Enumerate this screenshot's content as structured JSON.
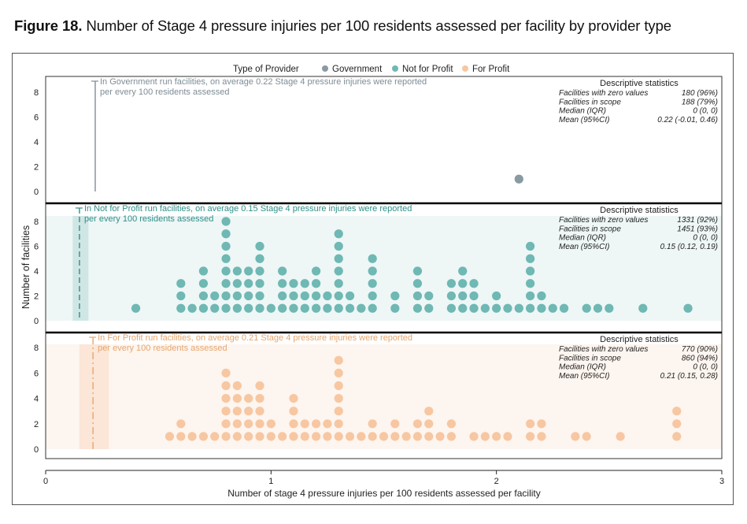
{
  "figure": {
    "label": "Figure 18.",
    "title": "Number of Stage 4 pressure injuries per 100 residents assessed per facility by provider type"
  },
  "chart_data": {
    "type": "scatter",
    "subtype": "dot-plot (stacked counts)",
    "title": "Number of Stage 4 pressure injuries per 100 residents assessed per facility by provider type",
    "xlabel": "Number of stage 4 pressure injuries per 100 residents assessed per facility",
    "ylabel": "Number of facilities",
    "xlim": [
      0,
      3
    ],
    "x_ticks": [
      "0",
      "1",
      "2",
      "3"
    ],
    "ylim": [
      0,
      8.5
    ],
    "y_ticks": [
      "0",
      "2",
      "4",
      "6",
      "8"
    ],
    "grid": false,
    "legend": {
      "title": "Type of Provider",
      "placement": "top-center",
      "entries": [
        "Government",
        "Not for Profit",
        "For Profit"
      ]
    },
    "stats_header": "Descriptive statistics",
    "stat_labels": [
      "Facilities with zero values",
      "Facilities in scope",
      "Median (IQR)",
      "Mean (95%CI)"
    ],
    "series": [
      {
        "name": "Government",
        "color": "#8a9aa3",
        "line_color": "#7e8c95",
        "line_style": "solid",
        "mean": 0.22,
        "ci": null,
        "annotation_line1": "In Government run facilities, on average 0.22 Stage 4 pressure injuries were reported",
        "annotation_line2": "per every 100 residents assessed",
        "stats": [
          "180 (96%)",
          "188 (79%)",
          "0 (0, 0)",
          "0.22 (-0.01, 0.46)"
        ],
        "points": [
          [
            2.1,
            1
          ]
        ]
      },
      {
        "name": "Not for Profit",
        "color": "#6fb8b3",
        "line_color": "#2f8f88",
        "line_style": "dashed",
        "mean": 0.15,
        "ci": [
          0.12,
          0.19
        ],
        "annotation_line1": "In Not for Profit run facilities, on average 0.15 Stage 4 pressure injuries were reported",
        "annotation_line2": "per every 100 residents assessed",
        "stats": [
          "1331 (92%)",
          "1451 (93%)",
          "0 (0, 0)",
          "0.15 (0.12, 0.19)"
        ],
        "points": [
          [
            0.4,
            1
          ],
          [
            0.6,
            3
          ],
          [
            0.65,
            1
          ],
          [
            0.7,
            4
          ],
          [
            0.75,
            2
          ],
          [
            0.8,
            8
          ],
          [
            0.85,
            4
          ],
          [
            0.9,
            4
          ],
          [
            0.95,
            6
          ],
          [
            1.0,
            1
          ],
          [
            1.05,
            4
          ],
          [
            1.1,
            3
          ],
          [
            1.15,
            3
          ],
          [
            1.2,
            4
          ],
          [
            1.25,
            2
          ],
          [
            1.3,
            7
          ],
          [
            1.35,
            2
          ],
          [
            1.4,
            1
          ],
          [
            1.45,
            5
          ],
          [
            1.55,
            2
          ],
          [
            1.65,
            4
          ],
          [
            1.7,
            2
          ],
          [
            1.8,
            3
          ],
          [
            1.85,
            4
          ],
          [
            1.9,
            3
          ],
          [
            1.95,
            1
          ],
          [
            2.0,
            2
          ],
          [
            2.05,
            1
          ],
          [
            2.1,
            1
          ],
          [
            2.15,
            6
          ],
          [
            2.2,
            2
          ],
          [
            2.25,
            1
          ],
          [
            2.3,
            1
          ],
          [
            2.4,
            1
          ],
          [
            2.45,
            1
          ],
          [
            2.5,
            1
          ],
          [
            2.65,
            1
          ],
          [
            2.85,
            1
          ]
        ]
      },
      {
        "name": "For Profit",
        "color": "#f7c7a2",
        "line_color": "#e6a66e",
        "line_style": "dashdot",
        "mean": 0.21,
        "ci": [
          0.15,
          0.28
        ],
        "annotation_line1": "In For Profit run facilities, on average 0.21 Stage 4 pressure injuries were reported",
        "annotation_line2": "per every 100 residents assessed",
        "stats": [
          "770 (90%)",
          "860 (94%)",
          "0 (0, 0)",
          "0.21 (0.15, 0.28)"
        ],
        "points": [
          [
            0.55,
            1
          ],
          [
            0.6,
            2
          ],
          [
            0.65,
            1
          ],
          [
            0.7,
            1
          ],
          [
            0.75,
            1
          ],
          [
            0.8,
            6
          ],
          [
            0.85,
            5
          ],
          [
            0.9,
            4
          ],
          [
            0.95,
            5
          ],
          [
            1.0,
            2
          ],
          [
            1.05,
            1
          ],
          [
            1.1,
            4
          ],
          [
            1.15,
            2
          ],
          [
            1.2,
            2
          ],
          [
            1.25,
            2
          ],
          [
            1.3,
            7
          ],
          [
            1.35,
            1
          ],
          [
            1.4,
            1
          ],
          [
            1.45,
            2
          ],
          [
            1.5,
            1
          ],
          [
            1.55,
            2
          ],
          [
            1.6,
            1
          ],
          [
            1.65,
            2
          ],
          [
            1.7,
            3
          ],
          [
            1.75,
            1
          ],
          [
            1.8,
            2
          ],
          [
            1.9,
            1
          ],
          [
            1.95,
            1
          ],
          [
            2.0,
            1
          ],
          [
            2.05,
            1
          ],
          [
            2.15,
            2
          ],
          [
            2.2,
            2
          ],
          [
            2.35,
            1
          ],
          [
            2.4,
            1
          ],
          [
            2.55,
            1
          ],
          [
            2.8,
            3
          ]
        ]
      }
    ]
  }
}
